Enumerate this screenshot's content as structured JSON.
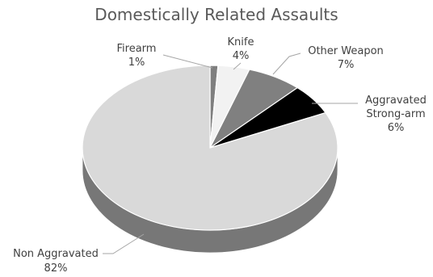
{
  "chart_data": {
    "type": "pie",
    "title": "Domestically Related Assaults",
    "slices": [
      {
        "name": "Firearm",
        "value": 1,
        "label": "1%",
        "color": "#7f7f7f"
      },
      {
        "name": "Knife",
        "value": 4,
        "label": "4%",
        "color": "#f2f2f2"
      },
      {
        "name": "Other Weapon",
        "value": 7,
        "label": "7%",
        "color": "#808080"
      },
      {
        "name": "Aggravated Strong-arm",
        "value": 6,
        "label": "6%",
        "color": "#000000"
      },
      {
        "name": "Non Aggravated",
        "value": 82,
        "label": "82%",
        "color": "#d9d9d9"
      }
    ]
  }
}
